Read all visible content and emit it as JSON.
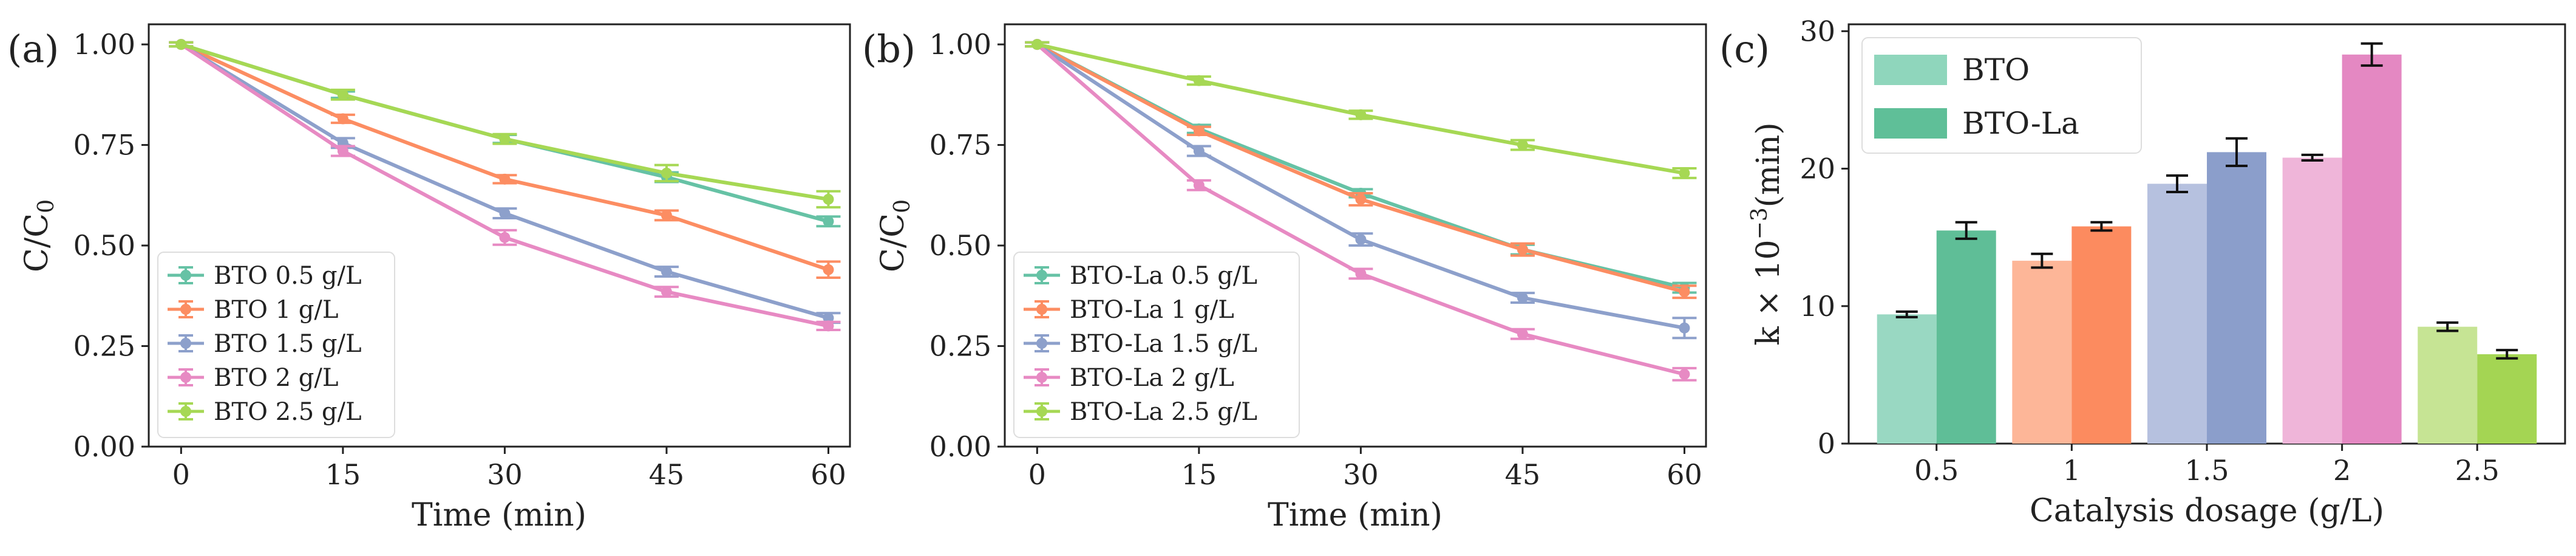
{
  "figure": {
    "panels": [
      {
        "tag": "(a)"
      },
      {
        "tag": "(b)"
      },
      {
        "tag": "(c)"
      }
    ]
  },
  "chart_data": [
    {
      "type": "line",
      "title": "",
      "panel_label": "(a)",
      "xlabel": "Time (min)",
      "ylabel": "C/C0",
      "x": [
        0,
        15,
        30,
        45,
        60
      ],
      "xticks": [
        "0",
        "15",
        "30",
        "45",
        "60"
      ],
      "yticks": [
        "0.00",
        "0.25",
        "0.50",
        "0.75",
        "1.00"
      ],
      "xlim": [
        -3,
        62
      ],
      "ylim": [
        0,
        1.05
      ],
      "grid": false,
      "legend_position": "lower-left",
      "series": [
        {
          "name": "BTO 0.5 g/L",
          "color": "#66c2a5",
          "values": [
            1.0,
            0.875,
            0.765,
            0.67,
            0.56
          ],
          "errors": [
            0.005,
            0.008,
            0.01,
            0.012,
            0.012
          ]
        },
        {
          "name": "BTO 1 g/L",
          "color": "#fc8d62",
          "values": [
            1.0,
            0.815,
            0.665,
            0.575,
            0.44
          ],
          "errors": [
            0.005,
            0.01,
            0.01,
            0.012,
            0.02
          ]
        },
        {
          "name": "BTO 1.5 g/L",
          "color": "#8da0cb",
          "values": [
            1.0,
            0.755,
            0.58,
            0.435,
            0.32
          ],
          "errors": [
            0.005,
            0.012,
            0.012,
            0.012,
            0.012
          ]
        },
        {
          "name": "BTO 2 g/L",
          "color": "#e78ac3",
          "values": [
            1.0,
            0.735,
            0.52,
            0.385,
            0.3
          ],
          "errors": [
            0.005,
            0.012,
            0.018,
            0.012,
            0.01
          ]
        },
        {
          "name": "BTO 2.5 g/L",
          "color": "#a6d854",
          "values": [
            1.0,
            0.875,
            0.765,
            0.68,
            0.615
          ],
          "errors": [
            0.005,
            0.012,
            0.012,
            0.02,
            0.02
          ]
        }
      ]
    },
    {
      "type": "line",
      "title": "",
      "panel_label": "(b)",
      "xlabel": "Time (min)",
      "ylabel": "C/C0",
      "x": [
        0,
        15,
        30,
        45,
        60
      ],
      "xticks": [
        "0",
        "15",
        "30",
        "45",
        "60"
      ],
      "yticks": [
        "0.00",
        "0.25",
        "0.50",
        "0.75",
        "1.00"
      ],
      "xlim": [
        -3,
        62
      ],
      "ylim": [
        0,
        1.05
      ],
      "grid": false,
      "legend_position": "lower-left",
      "series": [
        {
          "name": "BTO-La 0.5 g/L",
          "color": "#66c2a5",
          "values": [
            1.0,
            0.79,
            0.63,
            0.49,
            0.395
          ],
          "errors": [
            0.005,
            0.01,
            0.01,
            0.012,
            0.012
          ]
        },
        {
          "name": "BTO-La 1 g/L",
          "color": "#fc8d62",
          "values": [
            1.0,
            0.785,
            0.615,
            0.49,
            0.385
          ],
          "errors": [
            0.005,
            0.01,
            0.015,
            0.015,
            0.015
          ]
        },
        {
          "name": "BTO-La 1.5 g/L",
          "color": "#8da0cb",
          "values": [
            1.0,
            0.735,
            0.515,
            0.37,
            0.295
          ],
          "errors": [
            0.005,
            0.012,
            0.015,
            0.012,
            0.025
          ]
        },
        {
          "name": "BTO-La 2 g/L",
          "color": "#e78ac3",
          "values": [
            1.0,
            0.65,
            0.43,
            0.28,
            0.18
          ],
          "errors": [
            0.005,
            0.012,
            0.012,
            0.012,
            0.015
          ]
        },
        {
          "name": "BTO-La 2.5 g/L",
          "color": "#a6d854",
          "values": [
            1.0,
            0.91,
            0.825,
            0.75,
            0.68
          ],
          "errors": [
            0.005,
            0.01,
            0.01,
            0.012,
            0.012
          ]
        }
      ]
    },
    {
      "type": "bar",
      "title": "",
      "panel_label": "(c)",
      "xlabel": "Catalysis dosage (g/L)",
      "ylabel": "k × 10−3(min)",
      "categories": [
        "0.5",
        "1",
        "1.5",
        "2",
        "2.5"
      ],
      "yticks": [
        "0",
        "10",
        "20",
        "30"
      ],
      "ylim": [
        0,
        30.5
      ],
      "grid": false,
      "legend_position": "top-left",
      "legend": [
        {
          "name": "BTO",
          "color": "#8fd6bc"
        },
        {
          "name": "BTO-La",
          "color": "#5fbf98"
        }
      ],
      "series": [
        {
          "name": "BTO",
          "values": [
            9.4,
            13.3,
            18.9,
            20.8,
            8.5
          ],
          "errors": [
            0.2,
            0.5,
            0.6,
            0.2,
            0.3
          ],
          "colors": [
            "#99d8c2",
            "#fdb698",
            "#b6c1df",
            "#efb5d9",
            "#c6e494"
          ]
        },
        {
          "name": "BTO-La",
          "values": [
            15.5,
            15.8,
            21.2,
            28.3,
            6.5
          ],
          "errors": [
            0.6,
            0.3,
            1.0,
            0.8,
            0.3
          ],
          "colors": [
            "#5fbe97",
            "#fc8b5f",
            "#8b9ecb",
            "#e488c2",
            "#a4d553"
          ]
        }
      ]
    }
  ]
}
